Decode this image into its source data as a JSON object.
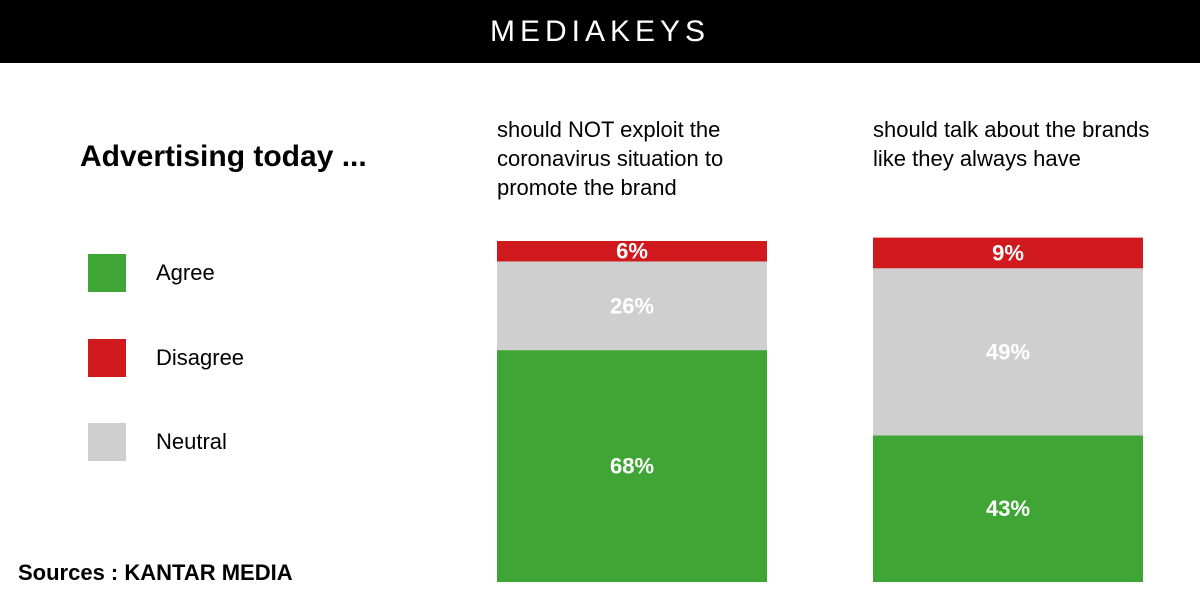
{
  "header": {
    "brand": "MEDIAKEYS"
  },
  "chart_data": {
    "type": "bar",
    "stacked": true,
    "title": "Advertising today ...",
    "categories": [
      "should NOT exploit the coronavirus situation to promote the brand",
      "should talk about the brands like they always have"
    ],
    "series": [
      {
        "name": "Agree",
        "color": "#3fa535",
        "values": [
          68,
          43
        ]
      },
      {
        "name": "Neutral",
        "color": "#cfcfcf",
        "values": [
          26,
          49
        ]
      },
      {
        "name": "Disagree",
        "color": "#d0191c",
        "values": [
          6,
          9
        ]
      }
    ],
    "value_labels": [
      [
        "68%",
        "43%"
      ],
      [
        "26%",
        "49%"
      ],
      [
        "6%",
        "9%"
      ]
    ],
    "unit": "%",
    "ylim": [
      0,
      100
    ],
    "legend": {
      "position": "left",
      "items": [
        {
          "label": "Agree",
          "color": "#3fa535"
        },
        {
          "label": "Disagree",
          "color": "#d0191c"
        },
        {
          "label": "Neutral",
          "color": "#cfcfcf"
        }
      ]
    },
    "source": "Sources : KANTAR MEDIA"
  }
}
